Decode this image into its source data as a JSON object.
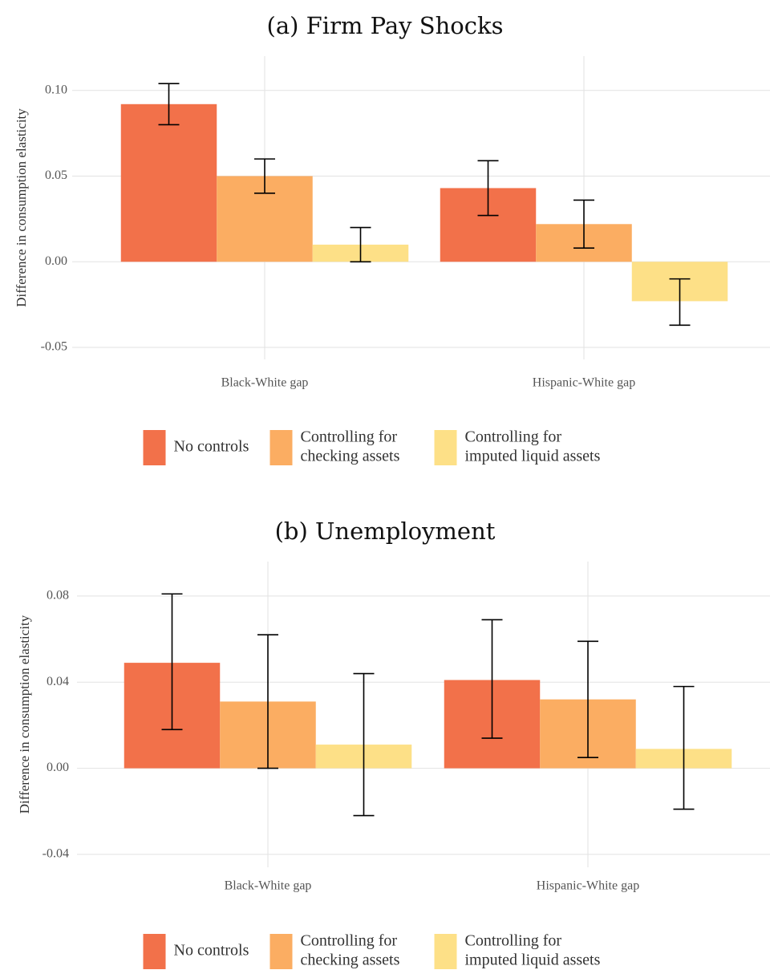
{
  "colors": {
    "no_controls": "#f2714a",
    "checking": "#fbad62",
    "liquid": "#fde087"
  },
  "legend": {
    "items": [
      {
        "lines": [
          "No controls"
        ],
        "color": "#f2714a"
      },
      {
        "lines": [
          "Controlling for",
          "checking assets"
        ],
        "color": "#fbad62"
      },
      {
        "lines": [
          "Controlling for",
          "imputed liquid assets"
        ],
        "color": "#fde087"
      }
    ]
  },
  "chart_data": [
    {
      "type": "bar",
      "title": "(a) Firm Pay Shocks",
      "ylabel": "Difference in consumption elasticity",
      "xlabel": "",
      "categories": [
        "Black-White gap",
        "Hispanic-White gap"
      ],
      "yticks": [
        -0.05,
        0.0,
        0.05,
        0.1
      ],
      "ytick_labels": [
        "-0.05",
        "0.00",
        "0.05",
        "0.10"
      ],
      "ylim": [
        -0.057,
        0.12
      ],
      "grid": true,
      "legend_position": "bottom",
      "series": [
        {
          "name": "No controls",
          "values": [
            0.092,
            0.043
          ],
          "err_low": [
            0.08,
            0.027
          ],
          "err_high": [
            0.104,
            0.059
          ]
        },
        {
          "name": "Controlling for checking assets",
          "values": [
            0.05,
            0.022
          ],
          "err_low": [
            0.04,
            0.008
          ],
          "err_high": [
            0.06,
            0.036
          ]
        },
        {
          "name": "Controlling for imputed liquid assets",
          "values": [
            0.01,
            -0.023
          ],
          "err_low": [
            0.0,
            -0.037
          ],
          "err_high": [
            0.02,
            -0.01
          ]
        }
      ]
    },
    {
      "type": "bar",
      "title": "(b) Unemployment",
      "ylabel": "Difference in consumption elasticity",
      "xlabel": "",
      "categories": [
        "Black-White gap",
        "Hispanic-White gap"
      ],
      "yticks": [
        -0.04,
        0.0,
        0.04,
        0.08
      ],
      "ytick_labels": [
        "-0.04",
        "0.00",
        "0.04",
        "0.08"
      ],
      "ylim": [
        -0.046,
        0.096
      ],
      "grid": true,
      "legend_position": "bottom",
      "series": [
        {
          "name": "No controls",
          "values": [
            0.049,
            0.041
          ],
          "err_low": [
            0.018,
            0.014
          ],
          "err_high": [
            0.081,
            0.069
          ]
        },
        {
          "name": "Controlling for checking assets",
          "values": [
            0.031,
            0.032
          ],
          "err_low": [
            0.0,
            0.005
          ],
          "err_high": [
            0.062,
            0.059
          ]
        },
        {
          "name": "Controlling for imputed liquid assets",
          "values": [
            0.011,
            0.009
          ],
          "err_low": [
            -0.022,
            -0.019
          ],
          "err_high": [
            0.044,
            0.038
          ]
        }
      ]
    }
  ]
}
